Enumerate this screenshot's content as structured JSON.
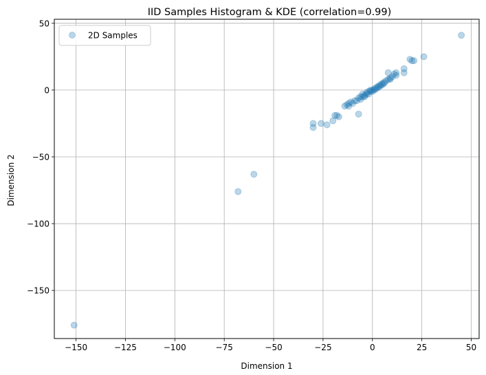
{
  "chart_data": {
    "type": "scatter",
    "title": "IID Samples Histogram & KDE (correlation=0.99)",
    "xlabel": "Dimension 1",
    "ylabel": "Dimension 2",
    "xlim": [
      -161,
      54
    ],
    "ylim": [
      -186,
      53
    ],
    "xticks": [
      -150,
      -125,
      -100,
      -75,
      -50,
      -25,
      0,
      25,
      50
    ],
    "xtick_labels": [
      "−150",
      "−125",
      "−100",
      "−75",
      "−50",
      "−25",
      "0",
      "25",
      "50"
    ],
    "yticks": [
      -150,
      -100,
      -50,
      0,
      50
    ],
    "ytick_labels": [
      "−150",
      "−100",
      "−50",
      "0",
      "50"
    ],
    "grid": true,
    "legend_position": "upper-left",
    "series": [
      {
        "name": "2D Samples",
        "color": "#1f77b4",
        "alpha": 0.3,
        "points": [
          [
            -151,
            -176
          ],
          [
            -68,
            -76
          ],
          [
            -60,
            -63
          ],
          [
            -30,
            -25
          ],
          [
            -30,
            -28
          ],
          [
            -26,
            -25
          ],
          [
            -23,
            -26
          ],
          [
            -20,
            -23
          ],
          [
            -19,
            -19
          ],
          [
            -18,
            -19
          ],
          [
            -17,
            -20
          ],
          [
            -14,
            -12
          ],
          [
            -13,
            -11
          ],
          [
            -12,
            -12
          ],
          [
            -12,
            -10
          ],
          [
            -11,
            -9
          ],
          [
            -10,
            -10
          ],
          [
            -9,
            -8
          ],
          [
            -8,
            -8
          ],
          [
            -7,
            -6
          ],
          [
            -7,
            -18
          ],
          [
            -6,
            -7
          ],
          [
            -6,
            -5
          ],
          [
            -5,
            -5
          ],
          [
            -5,
            -3
          ],
          [
            -4,
            -5
          ],
          [
            -4,
            -4
          ],
          [
            -3,
            -3
          ],
          [
            -3,
            -2
          ],
          [
            -2,
            -3
          ],
          [
            -2,
            -1
          ],
          [
            -1,
            -1
          ],
          [
            -1,
            0
          ],
          [
            0,
            -1
          ],
          [
            0,
            0
          ],
          [
            1,
            1
          ],
          [
            1,
            0
          ],
          [
            2,
            2
          ],
          [
            2,
            1
          ],
          [
            3,
            3
          ],
          [
            3,
            2
          ],
          [
            4,
            4
          ],
          [
            4,
            3
          ],
          [
            5,
            5
          ],
          [
            5,
            4
          ],
          [
            6,
            6
          ],
          [
            6,
            5
          ],
          [
            7,
            7
          ],
          [
            8,
            8
          ],
          [
            8,
            13
          ],
          [
            9,
            9
          ],
          [
            9,
            8
          ],
          [
            10,
            10
          ],
          [
            11,
            12
          ],
          [
            12,
            13
          ],
          [
            12,
            11
          ],
          [
            16,
            16
          ],
          [
            16,
            13
          ],
          [
            19,
            23
          ],
          [
            20,
            22
          ],
          [
            21,
            22
          ],
          [
            26,
            25
          ],
          [
            45,
            41
          ]
        ]
      }
    ]
  }
}
